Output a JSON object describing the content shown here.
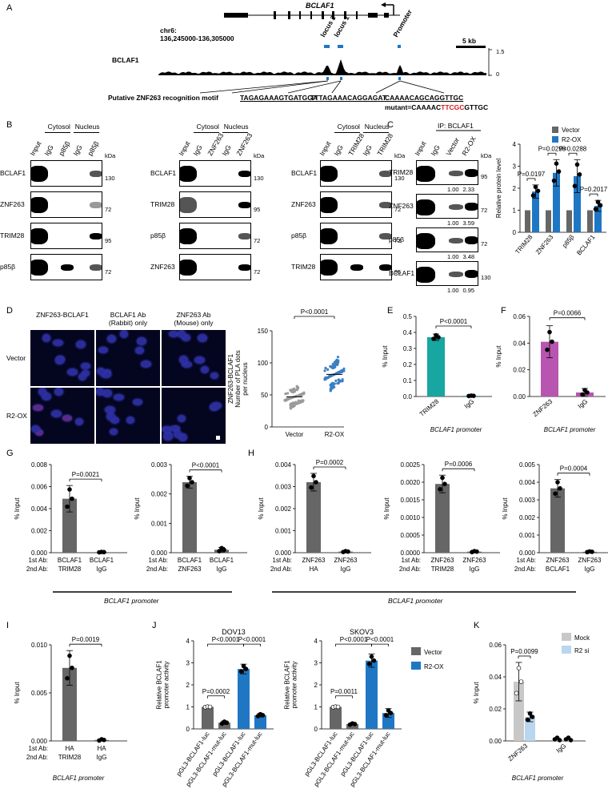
{
  "panel_letters": {
    "a": "A",
    "b": "B",
    "c": "C",
    "d": "D",
    "e": "E",
    "f": "F",
    "g": "G",
    "h": "H",
    "i": "I",
    "j": "J",
    "k": "K"
  },
  "panel_a": {
    "gene": "BCLAF1",
    "chr": "chr6:",
    "coords": "136,245000-136,305000",
    "locus2": "locus 2",
    "locus1": "locus 1",
    "promoter": "Promoter",
    "scale": "5 kb",
    "track": "BCLAF1",
    "track_max": "1.5",
    "track_min": "0",
    "motif_label": "Putative ZNF263 recognition motif",
    "motif1": "TAGAGAAAGTGATGGA",
    "motif2": "TTTAGAAACAGGAGAT",
    "motif3": "CAAAACAGCAGGTTGC",
    "mutant_pre": "mutant=CAAAAC",
    "mutant_red": "TTCGC",
    "mutant_post": "GTTGC"
  },
  "panel_b": {
    "cytosol": "Cytosol",
    "nucleus": "Nucleus",
    "kda": "kDa",
    "blot1": {
      "lanes": [
        "Input",
        "IgG",
        "p85β",
        "IgG",
        "p85β"
      ],
      "rows": [
        "BCLAF1",
        "ZNF263",
        "TRIM28",
        "p85β"
      ],
      "mw": [
        "130",
        "72",
        "95",
        "72"
      ]
    },
    "blot2": {
      "lanes": [
        "Input",
        "IgG",
        "ZNF263",
        "IgG",
        "ZNF263"
      ],
      "rows": [
        "BCLAF1",
        "TRIM28",
        "p85β",
        "ZNF263"
      ],
      "mw": [
        "130",
        "95",
        "72",
        "72"
      ]
    },
    "blot3": {
      "lanes": [
        "Input",
        "IgG",
        "TRIM28",
        "IgG",
        "TRIM28"
      ],
      "rows": [
        "BCLAF1",
        "ZNF263",
        "p85β",
        "TRIM28"
      ],
      "mw": [
        "130",
        "72",
        "72",
        "95"
      ]
    }
  },
  "panel_c": {
    "ip": "IP: BCLAF1",
    "lanes": [
      "Input",
      "IgG",
      "Vector",
      "R2-OX"
    ],
    "kda": "kDa",
    "rows": [
      {
        "name": "TRIM28",
        "mw": "95",
        "q1": "1.00",
        "q2": "2.33"
      },
      {
        "name": "ZNF263",
        "mw": "72",
        "q1": "1.00",
        "q2": "3.59"
      },
      {
        "name": "p85β",
        "mw": "72",
        "q1": "1.00",
        "q2": "3.48"
      },
      {
        "name": "BCLAF1",
        "mw": "130",
        "q1": "1.00",
        "q2": "0.95"
      }
    ]
  },
  "panel_d": {
    "cols": [
      "ZNF263-BCLAF1",
      "BCLAF1 Ab\n(Rabbit) only",
      "ZNF263 Ab\n(Mouse) only"
    ],
    "rows": [
      "Vector",
      "R2-OX"
    ]
  },
  "promoter_label": "BCLAF1 promoter",
  "ab1": "1st Ab:",
  "ab2": "2nd Ab:",
  "chart_data": [
    {
      "id": "C",
      "type": "bar",
      "ylabel": "Relative protein level",
      "ylim": [
        0,
        4
      ],
      "yticks": [
        "0",
        "1",
        "2",
        "3",
        "4"
      ],
      "categories": [
        "TRIM28",
        "ZNF263",
        "p85β",
        "BCLAF1"
      ],
      "series": [
        {
          "name": "Vector",
          "color": "#666666",
          "values": [
            1,
            1,
            1,
            1
          ]
        },
        {
          "name": "R2-OX",
          "color": "#1f77c4",
          "values": [
            1.85,
            2.7,
            2.55,
            1.2
          ]
        }
      ],
      "errors": [
        0.3,
        0.6,
        0.75,
        0.25
      ],
      "pvalues": [
        "P=0.0197",
        "P=0.0298",
        "P=0.0288",
        "P=0.2017"
      ]
    },
    {
      "id": "D",
      "type": "scatter",
      "ylabel": "ZNF263-BCLAF1\nNumber of PLA dots\nper nucleus",
      "ylim": [
        0,
        150
      ],
      "yticks": [
        "0",
        "50",
        "100",
        "150"
      ],
      "categories": [
        "Vector",
        "R2-OX"
      ],
      "values": [
        47,
        82
      ],
      "pvalue": "P<0.0001"
    },
    {
      "id": "E",
      "type": "bar",
      "ylabel": "% Input",
      "ylim": [
        0,
        0.5
      ],
      "yticks": [
        "0.0",
        "0.1",
        "0.2",
        "0.3",
        "0.4",
        "0.5"
      ],
      "categories": [
        "TRIM28",
        "IgG"
      ],
      "values": [
        0.37,
        0.004
      ],
      "errors": [
        0.02,
        0.002
      ],
      "colors": [
        "#17a6a0",
        "#17a6a0"
      ],
      "pvalue": "P<0.0001"
    },
    {
      "id": "F",
      "type": "bar",
      "ylabel": "% Input",
      "ylim": [
        0,
        0.06
      ],
      "yticks": [
        "0.00",
        "0.02",
        "0.04",
        "0.06"
      ],
      "categories": [
        "ZNF263",
        "IgG"
      ],
      "values": [
        0.041,
        0.003
      ],
      "errors": [
        0.012,
        0.003
      ],
      "colors": [
        "#b755b0",
        "#b755b0"
      ],
      "pvalue": "P=0.0066"
    },
    {
      "id": "G1",
      "type": "bar",
      "ylabel": "% Input",
      "ylim": [
        0,
        0.008
      ],
      "yticks": [
        "0.000",
        "0.002",
        "0.004",
        "0.006",
        "0.008"
      ],
      "first_ab": [
        "BCLAF1",
        "BCLAF1"
      ],
      "second_ab": [
        "TRIM28",
        "IgG"
      ],
      "values": [
        0.0049,
        5e-05
      ],
      "errors": [
        0.0012,
        3e-05
      ],
      "pvalue": "P=0.0021"
    },
    {
      "id": "G2",
      "type": "bar",
      "ylabel": "% Input",
      "ylim": [
        0,
        0.003
      ],
      "yticks": [
        "0.000",
        "0.001",
        "0.002",
        "0.003"
      ],
      "first_ab": [
        "BCLAF1",
        "BCLAF1"
      ],
      "second_ab": [
        "ZNF263",
        "IgG"
      ],
      "values": [
        0.0024,
        0.0001
      ],
      "errors": [
        0.0002,
        8e-05
      ],
      "pvalue": "P<0.0001"
    },
    {
      "id": "H1",
      "type": "bar",
      "ylabel": "% Input",
      "ylim": [
        0,
        0.004
      ],
      "yticks": [
        "0.000",
        "0.001",
        "0.002",
        "0.003",
        "0.004"
      ],
      "first_ab": [
        "ZNF263",
        "ZNF263"
      ],
      "second_ab": [
        "HA",
        "IgG"
      ],
      "values": [
        0.0032,
        5e-05
      ],
      "errors": [
        0.0004,
        3e-05
      ],
      "pvalue": "P=0.0002"
    },
    {
      "id": "H2",
      "type": "bar",
      "ylabel": "% Input",
      "ylim": [
        0,
        0.0025
      ],
      "yticks": [
        "0.0000",
        "0.0005",
        "0.0010",
        "0.0015",
        "0.0020",
        "0.0025"
      ],
      "first_ab": [
        "ZNF263",
        "ZNF263"
      ],
      "second_ab": [
        "TRIM28",
        "IgG"
      ],
      "values": [
        0.00195,
        3e-05
      ],
      "errors": [
        0.00025,
        2e-05
      ],
      "pvalue": "P=0.0006"
    },
    {
      "id": "H3",
      "type": "bar",
      "ylabel": "% Input",
      "ylim": [
        0,
        0.005
      ],
      "yticks": [
        "0.000",
        "0.001",
        "0.002",
        "0.003",
        "0.004",
        "0.005"
      ],
      "first_ab": [
        "ZNF263",
        "ZNF263"
      ],
      "second_ab": [
        "BCLAF1",
        "IgG"
      ],
      "values": [
        0.00365,
        5e-05
      ],
      "errors": [
        0.0005,
        3e-05
      ],
      "pvalue": "P=0.0004"
    },
    {
      "id": "I",
      "type": "bar",
      "ylabel": "% Input",
      "ylim": [
        0,
        0.01
      ],
      "yticks": [
        "0.000",
        "0.005",
        "0.010"
      ],
      "first_ab": [
        "HA",
        "HA"
      ],
      "second_ab": [
        "TRIM28",
        "IgG"
      ],
      "values": [
        0.0076,
        0.0001
      ],
      "errors": [
        0.0018,
        0.0001
      ],
      "pvalue": "P=0.0019"
    },
    {
      "id": "J1",
      "type": "bar",
      "title": "DOV13",
      "ylabel": "Relative BCLAF1\npromoter activity",
      "ylim": [
        0,
        4
      ],
      "yticks": [
        "0",
        "1",
        "2",
        "3",
        "4"
      ],
      "categories": [
        "pGL3-BCLAF1-luc",
        "pGL3-BCLAF1-mut-luc",
        "pGL3-BCLAF1-luc",
        "pGL3-BCLAF1-mut-luc"
      ],
      "values": [
        1.0,
        0.28,
        2.72,
        0.62
      ],
      "errors": [
        0.02,
        0.08,
        0.22,
        0.08
      ],
      "colors": [
        "#666666",
        "#666666",
        "#1f77c4",
        "#1f77c4"
      ],
      "pvalues": [
        "P=0.0002",
        "P<0.0001",
        "P<0.0001"
      ]
    },
    {
      "id": "J2",
      "type": "bar",
      "title": "SKOV3",
      "ylabel": "Relative BCLAF1\npromoter activity",
      "ylim": [
        0,
        4
      ],
      "yticks": [
        "0",
        "1",
        "2",
        "3",
        "4"
      ],
      "categories": [
        "pGL3-BCLAF1-luc",
        "pGL3-BCLAF1-mut-luc",
        "pGL3-BCLAF1-luc",
        "pGL3-BCLAF1-mut-luc"
      ],
      "values": [
        1.0,
        0.22,
        3.1,
        0.72
      ],
      "errors": [
        0.02,
        0.05,
        0.3,
        0.2
      ],
      "colors": [
        "#666666",
        "#666666",
        "#1f77c4",
        "#1f77c4"
      ],
      "pvalues": [
        "P=0.0011",
        "P<0.0001",
        "P<0.0001"
      ],
      "legend": [
        {
          "name": "Vector",
          "color": "#666666"
        },
        {
          "name": "R2-OX",
          "color": "#1f77c4"
        }
      ]
    },
    {
      "id": "K",
      "type": "bar",
      "ylabel": "% Input",
      "ylim": [
        0,
        0.06
      ],
      "yticks": [
        "0.00",
        "0.02",
        "0.04",
        "0.06"
      ],
      "categories": [
        "ZNF263",
        "IgG"
      ],
      "series": [
        {
          "name": "Mock",
          "color": "#c8c8c8",
          "values": [
            0.037,
            0.001
          ]
        },
        {
          "name": "R2 si",
          "color": "#b9d6ee",
          "values": [
            0.015,
            0.001
          ]
        }
      ],
      "errors": [
        0.012,
        0.003
      ],
      "pvalue": "P=0.0099"
    }
  ]
}
